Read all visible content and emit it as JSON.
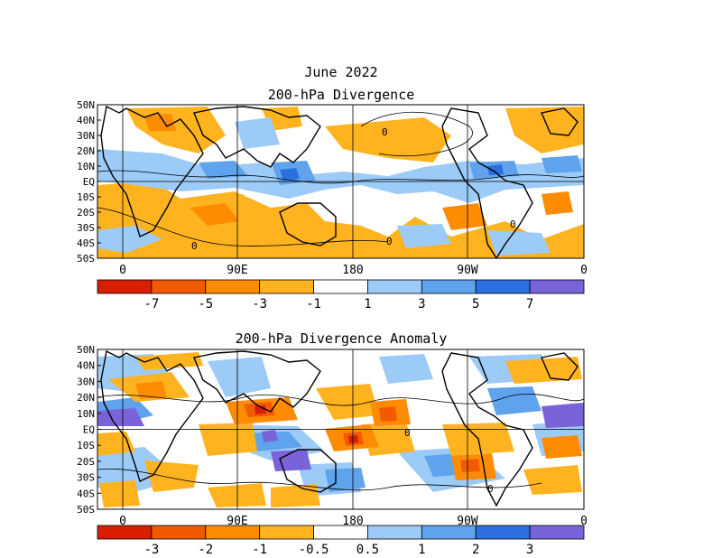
{
  "figure": {
    "title": "June 2022",
    "panels": [
      {
        "title": "200-hPa Divergence",
        "lat_labels": [
          "50N",
          "40N",
          "30N",
          "20N",
          "10N",
          "EQ",
          "10S",
          "20S",
          "30S",
          "40S",
          "50S"
        ],
        "lon_labels": [
          "0",
          "90E",
          "180",
          "90W",
          "0"
        ],
        "colorbar": {
          "colors": [
            "#d91e00",
            "#f25a00",
            "#ff8c00",
            "#ffb31f",
            "#ffffff",
            "#9ccbf7",
            "#5fa3ed",
            "#2b6fe0",
            "#7a63d9"
          ],
          "labels": [
            "-7",
            "-5",
            "-3",
            "-1",
            "1",
            "3",
            "5",
            "7"
          ]
        },
        "contour_label": "0"
      },
      {
        "title": "200-hPa Divergence Anomaly",
        "lat_labels": [
          "50N",
          "40N",
          "30N",
          "20N",
          "10N",
          "EQ",
          "10S",
          "20S",
          "30S",
          "40S",
          "50S"
        ],
        "lon_labels": [
          "0",
          "90E",
          "180",
          "90W",
          "0"
        ],
        "colorbar": {
          "colors": [
            "#d91e00",
            "#f25a00",
            "#ff8c00",
            "#ffb31f",
            "#ffffff",
            "#9ccbf7",
            "#5fa3ed",
            "#2b6fe0",
            "#7a63d9"
          ],
          "labels": [
            "-3",
            "-2",
            "-1",
            "-0.5",
            "0.5",
            "1",
            "2",
            "3"
          ]
        },
        "contour_label": "0"
      }
    ]
  }
}
